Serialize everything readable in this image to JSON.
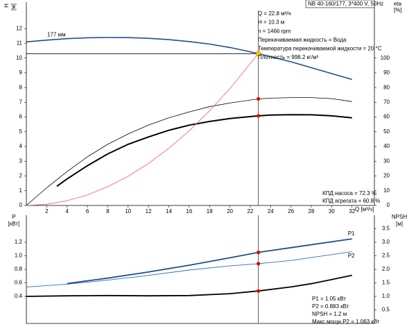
{
  "chart_data": [
    {
      "type": "line",
      "title": "NB 40-160/177, 3*400 V, 50Hz",
      "ylabel": "H",
      "ylabel_unit": "[м]",
      "y2label": "eta",
      "y2label_unit": "[%]",
      "xlabel": "Q [м³/ч]",
      "xlim": [
        0,
        34.2
      ],
      "xticks": [
        2,
        4,
        6,
        8,
        10,
        12,
        14,
        16,
        18,
        20,
        22,
        24,
        26,
        28,
        30,
        32
      ],
      "ylim": [
        0,
        13.8
      ],
      "yticks": [
        0,
        1,
        2,
        3,
        4,
        5,
        6,
        7,
        8,
        9,
        10,
        11,
        12
      ],
      "y2lim": [
        0,
        138
      ],
      "y2ticks": [
        0,
        10,
        20,
        30,
        40,
        50,
        60,
        70,
        80,
        90,
        100
      ],
      "info": [
        "Q = 22.8 м³/ч",
        "H = 10.3 м",
        "n = 1466 rpm",
        "Перекачиваемая жидкость = Вода",
        "Температура перекачиваемой жидкости = 20 °C",
        "Плотность = 998.2 кг/м³"
      ],
      "notes": [
        "КПД насоса = 72.3 %",
        "КПД агрегата = 60.8 %"
      ],
      "series": [
        {
          "name": "177 мм",
          "color": "#1f4e8c",
          "width": 1.6,
          "x": [
            0,
            2,
            4,
            6,
            8,
            10,
            12,
            14,
            16,
            18,
            20,
            22,
            22.8,
            24,
            26,
            28,
            30,
            32
          ],
          "values": [
            11.1,
            11.22,
            11.32,
            11.38,
            11.4,
            11.39,
            11.34,
            11.25,
            11.12,
            10.95,
            10.72,
            10.43,
            10.3,
            10.1,
            9.75,
            9.35,
            8.95,
            8.55
          ]
        },
        {
          "color": "#000000",
          "width": 0.8,
          "axis": "y2",
          "x": [
            0,
            2,
            4,
            6,
            8,
            10,
            12,
            14,
            16,
            18,
            20,
            22.8,
            24,
            26,
            28,
            30,
            32
          ],
          "values": [
            0,
            12,
            23,
            33,
            41.5,
            48.5,
            54.5,
            59.5,
            63.5,
            67,
            69.5,
            72.3,
            72.8,
            73.2,
            73.2,
            72.5,
            70.5
          ]
        },
        {
          "color": "#000000",
          "width": 2,
          "axis": "y2",
          "x": [
            3,
            4,
            6,
            8,
            10,
            12,
            14,
            16,
            18,
            20,
            22.8,
            24,
            26,
            28,
            30,
            32
          ],
          "values": [
            13,
            18,
            27,
            35,
            41.5,
            46.5,
            51,
            54.5,
            57,
            59,
            60.8,
            61.3,
            61.6,
            61.5,
            60.8,
            59.5
          ]
        },
        {
          "color": "#ff5a5a",
          "width": 0.8,
          "x": [
            0,
            2,
            4,
            6,
            8,
            10,
            12,
            14,
            16,
            18,
            20,
            22.8
          ],
          "values": [
            0,
            0.08,
            0.32,
            0.71,
            1.27,
            1.98,
            2.85,
            3.88,
            5.07,
            6.42,
            7.93,
            10.3
          ]
        }
      ],
      "markers": [
        {
          "x": 22.8,
          "y": 10.3,
          "color": "#f5c400"
        },
        {
          "x": 22.8,
          "y": 72.3,
          "axis": "y2",
          "color": "#e00000"
        },
        {
          "x": 22.8,
          "y": 60.8,
          "axis": "y2",
          "color": "#e00000"
        }
      ]
    },
    {
      "type": "line",
      "ylabel": "P",
      "ylabel_unit": "[кВт]",
      "y2label": "NPSH",
      "y2label_unit": "[м]",
      "xlim": [
        0,
        34.2
      ],
      "ylim": [
        0,
        1.6
      ],
      "yticks": [
        0.4,
        0.6,
        0.8,
        {
          "value": 1.0,
          "label": "1.0"
        },
        1.2
      ],
      "y2lim": [
        0,
        4
      ],
      "y2ticks": [
        0.5,
        {
          "value": 1.0,
          "label": "1.0"
        },
        1.5,
        {
          "value": 2.0,
          "label": "2.0"
        },
        2.5,
        {
          "value": 3.0,
          "label": "3.0"
        },
        3.5
      ],
      "info": [
        "P1 = 1.05 кВт",
        "P2 = 0.883 кВт",
        "NPSH = 1.2 м",
        "Макс.мощн.P2 = 1.063 кВт"
      ],
      "series": [
        {
          "name": "P1",
          "color": "#1f4e8c",
          "width": 1.8,
          "x": [
            4,
            8,
            12,
            16,
            20,
            22.8,
            26,
            32
          ],
          "values": [
            0.59,
            0.67,
            0.76,
            0.86,
            0.97,
            1.05,
            1.12,
            1.25
          ]
        },
        {
          "name": "P2",
          "color": "#2f6bb0",
          "width": 0.9,
          "x": [
            0,
            4,
            8,
            12,
            16,
            20,
            22.8,
            26,
            32
          ],
          "values": [
            0.54,
            0.58,
            0.64,
            0.71,
            0.79,
            0.85,
            0.883,
            0.93,
            1.06
          ]
        },
        {
          "color": "#000000",
          "width": 1.8,
          "axis": "y2",
          "x": [
            0,
            4,
            8,
            12,
            16,
            20,
            22.8,
            26,
            28,
            30,
            32
          ],
          "values": [
            1.0,
            1.02,
            1.03,
            1.02,
            1.03,
            1.1,
            1.2,
            1.35,
            1.47,
            1.62,
            1.78
          ]
        }
      ],
      "markers": [
        {
          "x": 22.8,
          "y": 1.05,
          "color": "#e00000"
        },
        {
          "x": 22.8,
          "y": 0.883,
          "color": "#e00000"
        },
        {
          "x": 22.8,
          "y": 1.2,
          "axis": "y2",
          "color": "#e00000"
        }
      ]
    }
  ]
}
